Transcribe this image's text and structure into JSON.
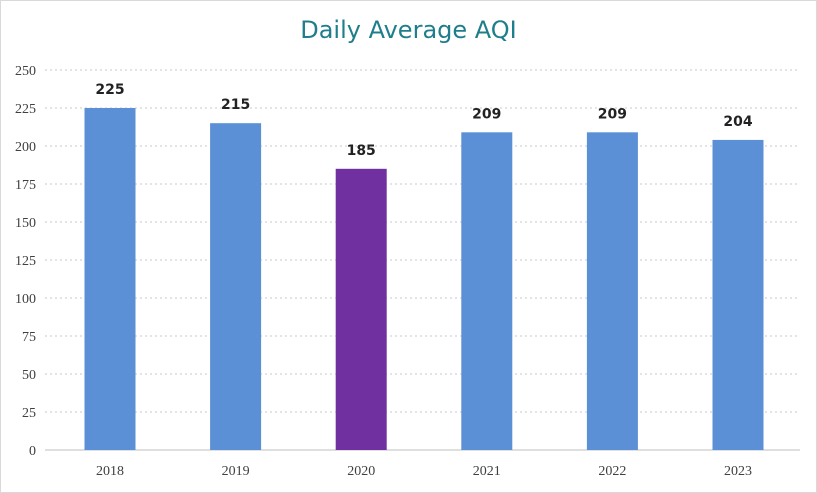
{
  "chart_data": {
    "type": "bar",
    "title": "Daily Average AQI",
    "categories": [
      "2018",
      "2019",
      "2020",
      "2021",
      "2022",
      "2023"
    ],
    "values": [
      225,
      215,
      185,
      209,
      209,
      204
    ],
    "bar_colors": [
      "#5b8fd6",
      "#5b8fd6",
      "#7030a0",
      "#5b8fd6",
      "#5b8fd6",
      "#5b8fd6"
    ],
    "ylim": [
      0,
      250
    ],
    "yticks": [
      0,
      25,
      50,
      75,
      100,
      125,
      150,
      175,
      200,
      225,
      250
    ],
    "xlabel": "",
    "ylabel": "",
    "grid": true,
    "grid_style": "dotted",
    "data_labels": true,
    "legend": false
  },
  "colors": {
    "title": "#1f7e8c",
    "bar": "#5b8fd6",
    "highlight": "#7030a0",
    "grid": "#c8c8c8",
    "axis": "#bfbfbf"
  }
}
